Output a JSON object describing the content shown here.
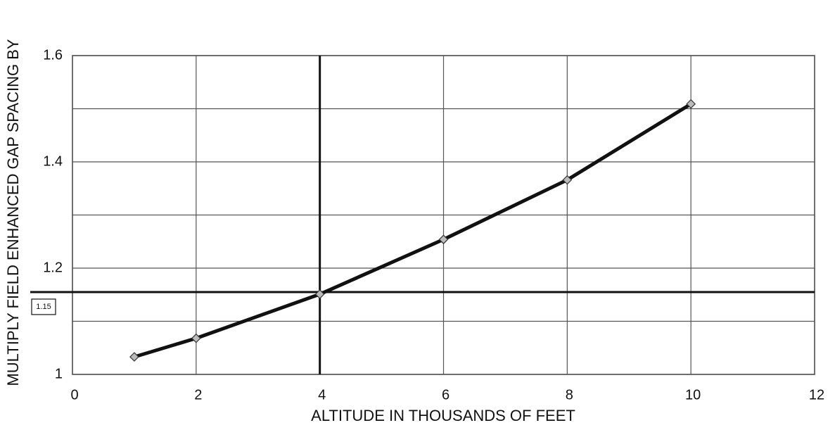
{
  "chart_data": {
    "type": "line",
    "y_label": "MULTIPLY FIELD ENHANCED GAP SPACING BY",
    "x_label": "ALTITUDE IN THOUSANDS OF FEET",
    "x": [
      1,
      2,
      4,
      6,
      8,
      10
    ],
    "series": [
      {
        "color": "#111111",
        "values": [
          1.033,
          1.068,
          1.151,
          1.254,
          1.366,
          1.509
        ]
      }
    ],
    "xlim": [
      0,
      12
    ],
    "xticks": [
      0,
      2,
      4,
      6,
      8,
      10,
      12
    ],
    "ylim": [
      1,
      1.6
    ],
    "yticks": [
      1,
      1.2,
      1.4,
      1.6
    ],
    "minor_yticks": [
      1.1,
      1.3,
      1.5
    ],
    "grid": true,
    "reference_x": 4,
    "reference_y": {
      "value": 1.155,
      "label": "1.15"
    }
  }
}
